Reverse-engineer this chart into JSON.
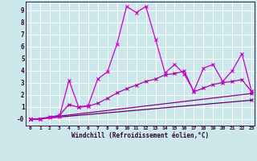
{
  "xlabel": "Windchill (Refroidissement éolien,°C)",
  "xlim_min": -0.5,
  "xlim_max": 23.3,
  "ylim_min": -0.55,
  "ylim_max": 9.7,
  "yticks": [
    0,
    1,
    2,
    3,
    4,
    5,
    6,
    7,
    8,
    9
  ],
  "xticks": [
    0,
    1,
    2,
    3,
    4,
    5,
    6,
    7,
    8,
    9,
    10,
    11,
    12,
    13,
    14,
    15,
    16,
    17,
    18,
    19,
    20,
    21,
    22,
    23
  ],
  "bg_color": "#cce8ea",
  "grid_color": "#ffffff",
  "color_bright": "#cc00cc",
  "color_mid": "#aa00aa",
  "color_dark1": "#880088",
  "color_dark2": "#660066",
  "curve1_x": [
    0,
    1,
    2,
    3,
    4,
    5,
    6,
    7,
    8,
    9,
    10,
    11,
    12,
    13,
    14,
    15,
    16,
    17,
    18,
    19,
    20,
    21,
    22,
    23
  ],
  "curve1_y": [
    -0.05,
    -0.05,
    0.1,
    0.15,
    3.2,
    1.0,
    1.1,
    3.3,
    3.9,
    6.2,
    9.3,
    8.8,
    9.3,
    6.6,
    3.8,
    4.5,
    3.7,
    2.3,
    4.2,
    4.5,
    3.1,
    4.0,
    5.4,
    2.3
  ],
  "curve2_x": [
    0,
    1,
    2,
    3,
    4,
    5,
    6,
    7,
    8,
    9,
    10,
    11,
    12,
    13,
    14,
    15,
    16,
    17,
    18,
    19,
    20,
    21,
    22,
    23
  ],
  "curve2_y": [
    -0.05,
    0.0,
    0.15,
    0.3,
    1.2,
    0.95,
    1.05,
    1.3,
    1.7,
    2.15,
    2.5,
    2.8,
    3.1,
    3.3,
    3.65,
    3.75,
    3.95,
    2.25,
    2.55,
    2.85,
    3.0,
    3.1,
    3.25,
    2.25
  ],
  "curve3_x": [
    0,
    23
  ],
  "curve3_y": [
    -0.05,
    2.1
  ],
  "curve4_x": [
    0,
    23
  ],
  "curve4_y": [
    -0.05,
    1.55
  ]
}
